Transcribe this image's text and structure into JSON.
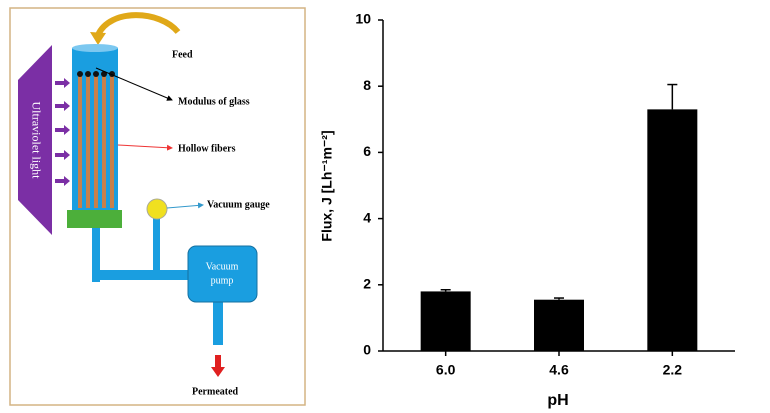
{
  "diagram": {
    "feed": "Feed",
    "modulus": "Modulus of glass",
    "fibers": "Hollow fibers",
    "gauge": "Vacuum gauge",
    "pump": [
      "Vacuum",
      "pump"
    ],
    "uv": "Ultraviolet light",
    "permeated": "Permeated"
  },
  "chart_data": {
    "type": "bar",
    "categories": [
      "6.0",
      "4.6",
      "2.2"
    ],
    "values": [
      1.8,
      1.55,
      7.3
    ],
    "errors": [
      0.05,
      0.05,
      0.75
    ],
    "color": "#000000",
    "xlabel": "pH",
    "ylabel": "Flux, J [Lh⁻¹m⁻²]",
    "ylim": [
      0,
      10
    ],
    "yticks": [
      0,
      2,
      4,
      6,
      8,
      10
    ],
    "grid": false
  }
}
